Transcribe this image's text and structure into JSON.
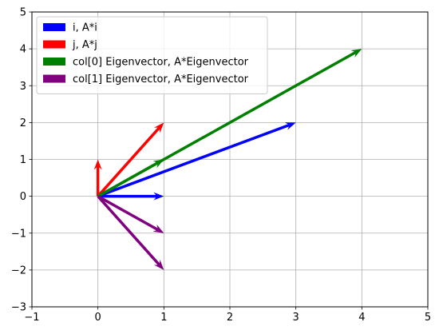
{
  "chart_data": {
    "type": "quiver",
    "title": "",
    "xlabel": "",
    "ylabel": "",
    "xlim": [
      -1,
      5
    ],
    "ylim": [
      -3,
      5
    ],
    "xticks": [
      -1,
      0,
      1,
      2,
      3,
      4,
      5
    ],
    "yticks": [
      -3,
      -2,
      -1,
      0,
      1,
      2,
      3,
      4,
      5
    ],
    "x_tick_labels": [
      "−1",
      "0",
      "1",
      "2",
      "3",
      "4",
      "5"
    ],
    "y_tick_labels": [
      "−3",
      "−2",
      "−1",
      "0",
      "1",
      "2",
      "3",
      "4",
      "5"
    ],
    "grid": true,
    "legend_position": "top-left",
    "series": [
      {
        "name": "i, A*i",
        "color": "#0000ff",
        "vectors": [
          {
            "x0": 0,
            "y0": 0,
            "x1": 1,
            "y1": 0
          },
          {
            "x0": 0,
            "y0": 0,
            "x1": 3,
            "y1": 2
          }
        ]
      },
      {
        "name": "j, A*j",
        "color": "#ff0000",
        "vectors": [
          {
            "x0": 0,
            "y0": 0,
            "x1": 0,
            "y1": 1
          },
          {
            "x0": 0,
            "y0": 0,
            "x1": 1,
            "y1": 2
          }
        ]
      },
      {
        "name": "col[0] Eigenvector, A*Eigenvector",
        "color": "#008000",
        "vectors": [
          {
            "x0": 0,
            "y0": 0,
            "x1": 1,
            "y1": 1
          },
          {
            "x0": 0,
            "y0": 0,
            "x1": 4,
            "y1": 4
          }
        ]
      },
      {
        "name": "col[1] Eigenvector, A*Eigenvector",
        "color": "#800080",
        "vectors": [
          {
            "x0": 0,
            "y0": 0,
            "x1": 1,
            "y1": -1
          },
          {
            "x0": 0,
            "y0": 0,
            "x1": 1,
            "y1": -2
          }
        ]
      }
    ]
  }
}
